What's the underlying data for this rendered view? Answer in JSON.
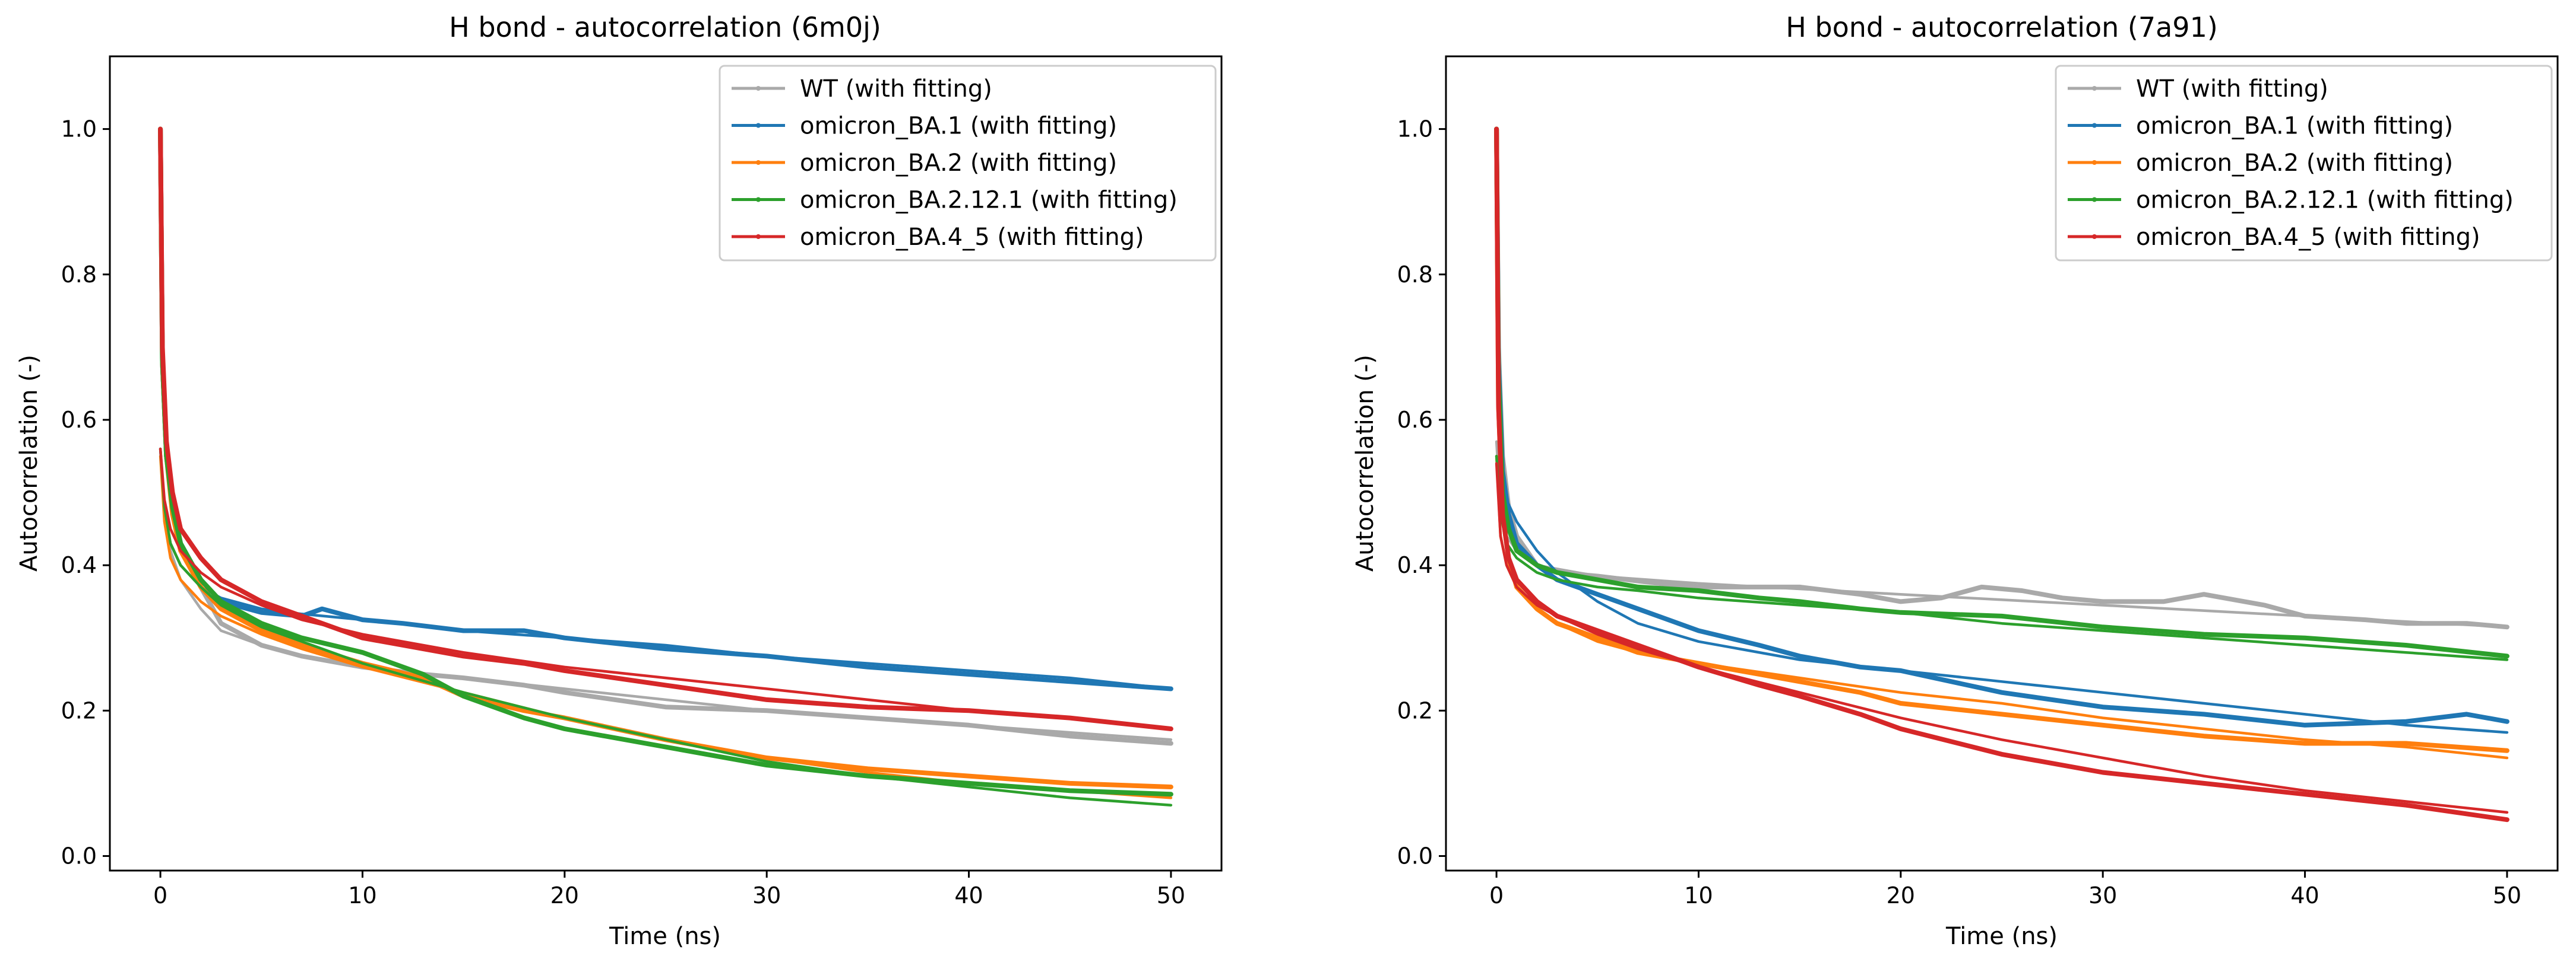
{
  "chart_data": [
    {
      "type": "line",
      "title": "H bond - autocorrelation (6m0j)",
      "xlabel": "Time (ns)",
      "ylabel": "Autocorrelation (-)",
      "xlim": [
        -2.5,
        52.5
      ],
      "ylim": [
        -0.02,
        1.1
      ],
      "xticks": [
        0,
        10,
        20,
        30,
        40,
        50
      ],
      "yticks": [
        0.0,
        0.2,
        0.4,
        0.6,
        0.8,
        1.0
      ],
      "xtick_labels": [
        "0",
        "10",
        "20",
        "30",
        "40",
        "50"
      ],
      "ytick_labels": [
        "0.0",
        "0.2",
        "0.4",
        "0.6",
        "0.8",
        "1.0"
      ],
      "legend_position": "top-right",
      "grid": false,
      "series": [
        {
          "name": "WT (with fitting)",
          "color": "#a9a9a9",
          "data": {
            "x": [
              0,
              0.1,
              0.3,
              0.6,
              1,
              2,
              3,
              5,
              7,
              10,
              13,
              15,
              18,
              20,
              25,
              30,
              35,
              40,
              45,
              50
            ],
            "y": [
              1.0,
              0.68,
              0.55,
              0.49,
              0.43,
              0.37,
              0.32,
              0.29,
              0.275,
              0.26,
              0.25,
              0.245,
              0.235,
              0.225,
              0.205,
              0.2,
              0.19,
              0.18,
              0.165,
              0.155
            ]
          },
          "fit": {
            "x": [
              0,
              0.2,
              0.5,
              1,
              2,
              3,
              5,
              7,
              10,
              15,
              20,
              25,
              30,
              35,
              40,
              45,
              50
            ],
            "y": [
              0.56,
              0.47,
              0.42,
              0.38,
              0.34,
              0.31,
              0.29,
              0.275,
              0.26,
              0.245,
              0.23,
              0.215,
              0.2,
              0.19,
              0.18,
              0.17,
              0.16
            ]
          }
        },
        {
          "name": "omicron_BA.1 (with fitting)",
          "color": "#1f77b4",
          "data": {
            "x": [
              0,
              0.1,
              0.3,
              0.6,
              1,
              2,
              3,
              5,
              7,
              8,
              10,
              12,
              15,
              18,
              20,
              25,
              30,
              35,
              40,
              45,
              50
            ],
            "y": [
              1.0,
              0.68,
              0.55,
              0.48,
              0.43,
              0.38,
              0.35,
              0.335,
              0.33,
              0.34,
              0.325,
              0.32,
              0.31,
              0.31,
              0.3,
              0.285,
              0.275,
              0.26,
              0.25,
              0.24,
              0.23
            ]
          },
          "fit": {
            "x": [
              0,
              0.2,
              0.5,
              1,
              2,
              3,
              5,
              7,
              10,
              15,
              20,
              25,
              30,
              35,
              40,
              45,
              50
            ],
            "y": [
              0.56,
              0.47,
              0.43,
              0.4,
              0.37,
              0.355,
              0.34,
              0.333,
              0.325,
              0.31,
              0.3,
              0.29,
              0.275,
              0.265,
              0.255,
              0.245,
              0.23
            ]
          }
        },
        {
          "name": "omicron_BA.2 (with fitting)",
          "color": "#ff7f0e",
          "data": {
            "x": [
              0,
              0.1,
              0.3,
              0.6,
              1,
              2,
              3,
              5,
              7,
              10,
              13,
              15,
              18,
              20,
              25,
              30,
              35,
              40,
              45,
              50
            ],
            "y": [
              1.0,
              0.68,
              0.55,
              0.47,
              0.42,
              0.37,
              0.34,
              0.31,
              0.29,
              0.265,
              0.245,
              0.22,
              0.2,
              0.19,
              0.16,
              0.135,
              0.12,
              0.11,
              0.1,
              0.095
            ]
          },
          "fit": {
            "x": [
              0,
              0.2,
              0.5,
              1,
              2,
              3,
              5,
              7,
              10,
              15,
              20,
              25,
              30,
              35,
              40,
              45,
              50
            ],
            "y": [
              0.55,
              0.46,
              0.41,
              0.38,
              0.35,
              0.33,
              0.305,
              0.285,
              0.26,
              0.225,
              0.19,
              0.16,
              0.135,
              0.115,
              0.1,
              0.09,
              0.08
            ]
          }
        },
        {
          "name": "omicron_BA.2.12.1 (with fitting)",
          "color": "#2ca02c",
          "data": {
            "x": [
              0,
              0.1,
              0.3,
              0.6,
              1,
              2,
              3,
              5,
              7,
              10,
              13,
              15,
              18,
              20,
              25,
              30,
              35,
              40,
              45,
              50
            ],
            "y": [
              1.0,
              0.68,
              0.55,
              0.48,
              0.43,
              0.38,
              0.35,
              0.32,
              0.3,
              0.28,
              0.25,
              0.22,
              0.19,
              0.175,
              0.15,
              0.125,
              0.11,
              0.1,
              0.09,
              0.085
            ]
          },
          "fit": {
            "x": [
              0,
              0.2,
              0.5,
              1,
              2,
              3,
              5,
              7,
              10,
              15,
              20,
              25,
              30,
              35,
              40,
              45,
              50
            ],
            "y": [
              0.56,
              0.48,
              0.43,
              0.4,
              0.37,
              0.345,
              0.315,
              0.295,
              0.265,
              0.225,
              0.19,
              0.16,
              0.13,
              0.11,
              0.095,
              0.08,
              0.07
            ]
          }
        },
        {
          "name": "omicron_BA.4_5 (with fitting)",
          "color": "#d62728",
          "data": {
            "x": [
              0,
              0.1,
              0.3,
              0.6,
              1,
              2,
              3,
              5,
              7,
              10,
              13,
              15,
              18,
              20,
              25,
              30,
              35,
              40,
              45,
              50
            ],
            "y": [
              1.0,
              0.7,
              0.57,
              0.5,
              0.45,
              0.41,
              0.38,
              0.35,
              0.33,
              0.3,
              0.285,
              0.275,
              0.265,
              0.255,
              0.235,
              0.215,
              0.205,
              0.2,
              0.19,
              0.175
            ]
          },
          "fit": {
            "x": [
              0,
              0.2,
              0.5,
              1,
              2,
              3,
              5,
              7,
              10,
              15,
              20,
              25,
              30,
              35,
              40,
              45,
              50
            ],
            "y": [
              0.56,
              0.49,
              0.45,
              0.42,
              0.39,
              0.37,
              0.345,
              0.325,
              0.305,
              0.28,
              0.26,
              0.245,
              0.23,
              0.215,
              0.2,
              0.19,
              0.175
            ]
          }
        }
      ]
    },
    {
      "type": "line",
      "title": "H bond - autocorrelation (7a91)",
      "xlabel": "Time (ns)",
      "ylabel": "Autocorrelation (-)",
      "xlim": [
        -2.5,
        52.5
      ],
      "ylim": [
        -0.02,
        1.1
      ],
      "xticks": [
        0,
        10,
        20,
        30,
        40,
        50
      ],
      "yticks": [
        0.0,
        0.2,
        0.4,
        0.6,
        0.8,
        1.0
      ],
      "xtick_labels": [
        "0",
        "10",
        "20",
        "30",
        "40",
        "50"
      ],
      "ytick_labels": [
        "0.0",
        "0.2",
        "0.4",
        "0.6",
        "0.8",
        "1.0"
      ],
      "legend_position": "top-right",
      "grid": false,
      "series": [
        {
          "name": "WT (with fitting)",
          "color": "#a9a9a9",
          "data": {
            "x": [
              0,
              0.1,
              0.3,
              0.6,
              1,
              2,
              3,
              5,
              8,
              10,
              15,
              18,
              20,
              22,
              24,
              26,
              28,
              30,
              33,
              35,
              38,
              40,
              43,
              45,
              48,
              50
            ],
            "y": [
              1.0,
              0.7,
              0.55,
              0.48,
              0.44,
              0.4,
              0.39,
              0.385,
              0.375,
              0.37,
              0.37,
              0.36,
              0.35,
              0.355,
              0.37,
              0.365,
              0.355,
              0.35,
              0.35,
              0.36,
              0.345,
              0.33,
              0.325,
              0.32,
              0.32,
              0.315
            ]
          },
          "fit": {
            "x": [
              0,
              0.2,
              0.5,
              1,
              2,
              3,
              5,
              10,
              20,
              30,
              40,
              50
            ],
            "y": [
              0.57,
              0.48,
              0.44,
              0.42,
              0.4,
              0.395,
              0.385,
              0.375,
              0.36,
              0.345,
              0.33,
              0.315
            ]
          }
        },
        {
          "name": "omicron_BA.1 (with fitting)",
          "color": "#1f77b4",
          "data": {
            "x": [
              0,
              0.1,
              0.3,
              0.6,
              1,
              2,
              3,
              5,
              7,
              10,
              13,
              15,
              18,
              20,
              25,
              30,
              35,
              40,
              45,
              48,
              50
            ],
            "y": [
              1.0,
              0.68,
              0.53,
              0.47,
              0.43,
              0.4,
              0.38,
              0.36,
              0.34,
              0.31,
              0.29,
              0.275,
              0.26,
              0.255,
              0.225,
              0.205,
              0.195,
              0.18,
              0.185,
              0.195,
              0.185
            ]
          },
          "fit": {
            "x": [
              0,
              0.2,
              0.5,
              1,
              2,
              3,
              5,
              7,
              10,
              15,
              20,
              25,
              30,
              35,
              40,
              45,
              50
            ],
            "y": [
              0.55,
              0.52,
              0.49,
              0.46,
              0.42,
              0.39,
              0.35,
              0.32,
              0.295,
              0.27,
              0.255,
              0.24,
              0.225,
              0.21,
              0.195,
              0.18,
              0.17
            ]
          }
        },
        {
          "name": "omicron_BA.2 (with fitting)",
          "color": "#ff7f0e",
          "data": {
            "x": [
              0,
              0.1,
              0.3,
              0.6,
              1,
              2,
              3,
              5,
              7,
              10,
              13,
              15,
              18,
              20,
              25,
              30,
              35,
              40,
              45,
              50
            ],
            "y": [
              1.0,
              0.62,
              0.47,
              0.41,
              0.37,
              0.34,
              0.32,
              0.3,
              0.28,
              0.265,
              0.25,
              0.24,
              0.225,
              0.21,
              0.195,
              0.18,
              0.165,
              0.155,
              0.155,
              0.145
            ]
          },
          "fit": {
            "x": [
              0,
              0.2,
              0.5,
              1,
              2,
              3,
              5,
              7,
              10,
              15,
              20,
              25,
              30,
              35,
              40,
              45,
              50
            ],
            "y": [
              0.55,
              0.44,
              0.4,
              0.37,
              0.34,
              0.32,
              0.295,
              0.28,
              0.265,
              0.245,
              0.225,
              0.21,
              0.19,
              0.175,
              0.16,
              0.15,
              0.135
            ]
          }
        },
        {
          "name": "omicron_BA.2.12.1 (with fitting)",
          "color": "#2ca02c",
          "data": {
            "x": [
              0,
              0.1,
              0.3,
              0.6,
              1,
              2,
              3,
              5,
              7,
              10,
              13,
              15,
              18,
              20,
              25,
              30,
              35,
              40,
              45,
              50
            ],
            "y": [
              1.0,
              0.66,
              0.5,
              0.45,
              0.42,
              0.4,
              0.39,
              0.38,
              0.37,
              0.365,
              0.355,
              0.35,
              0.34,
              0.335,
              0.33,
              0.315,
              0.305,
              0.3,
              0.29,
              0.275
            ]
          },
          "fit": {
            "x": [
              0,
              0.2,
              0.5,
              1,
              2,
              3,
              5,
              7,
              10,
              15,
              20,
              25,
              30,
              35,
              40,
              45,
              50
            ],
            "y": [
              0.55,
              0.47,
              0.43,
              0.41,
              0.39,
              0.38,
              0.37,
              0.365,
              0.355,
              0.345,
              0.335,
              0.32,
              0.31,
              0.3,
              0.29,
              0.28,
              0.27
            ]
          }
        },
        {
          "name": "omicron_BA.4_5 (with fitting)",
          "color": "#d62728",
          "data": {
            "x": [
              0,
              0.1,
              0.3,
              0.6,
              1,
              2,
              3,
              5,
              7,
              10,
              13,
              15,
              18,
              20,
              25,
              30,
              35,
              40,
              45,
              50
            ],
            "y": [
              1.0,
              0.62,
              0.47,
              0.41,
              0.38,
              0.35,
              0.33,
              0.31,
              0.29,
              0.26,
              0.235,
              0.22,
              0.195,
              0.175,
              0.14,
              0.115,
              0.1,
              0.085,
              0.07,
              0.05
            ]
          },
          "fit": {
            "x": [
              0,
              0.2,
              0.5,
              1,
              2,
              3,
              5,
              7,
              10,
              15,
              20,
              25,
              30,
              35,
              40,
              45,
              50
            ],
            "y": [
              0.54,
              0.44,
              0.4,
              0.37,
              0.345,
              0.33,
              0.305,
              0.285,
              0.26,
              0.225,
              0.19,
              0.16,
              0.135,
              0.11,
              0.09,
              0.075,
              0.06
            ]
          }
        }
      ]
    }
  ]
}
